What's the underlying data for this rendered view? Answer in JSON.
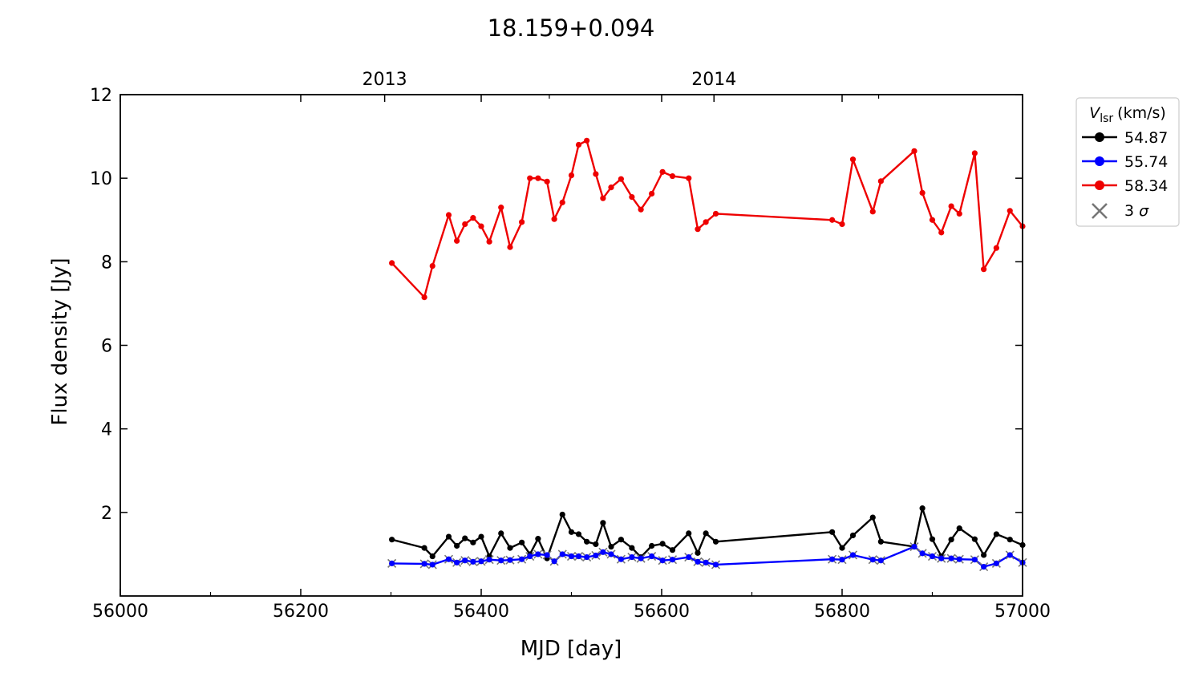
{
  "chart_data": {
    "type": "line",
    "title": "18.159+0.094",
    "xlabel": "MJD [day]",
    "ylabel": "Flux density [Jy]",
    "xlim": [
      56000,
      57000
    ],
    "ylim": [
      0,
      12
    ],
    "xticks": [
      56000,
      56200,
      56400,
      56600,
      56800,
      57000
    ],
    "yticks": [
      2,
      4,
      6,
      8,
      10,
      12
    ],
    "top_axis": {
      "ticks": [
        {
          "label": "2013",
          "mjd": 56293
        },
        {
          "label": "2014",
          "mjd": 56658
        }
      ]
    },
    "grid": false,
    "legend": {
      "placement": "outside-right",
      "title_main": "V",
      "title_sub": "lsr",
      "title_unit": "(km/s)",
      "sigma_label_num": "3",
      "sigma_label_sym": "σ",
      "sigma_color": "#777777"
    },
    "series": [
      {
        "name": "54.87",
        "color": "#000000",
        "x": [
          56301,
          56337,
          56346,
          56364,
          56373,
          56382,
          56391,
          56400,
          56409,
          56422,
          56432,
          56445,
          56454,
          56463,
          56473,
          56490,
          56500,
          56508,
          56517,
          56527,
          56535,
          56544,
          56555,
          56567,
          56577,
          56589,
          56601,
          56612,
          56630,
          56640,
          56649,
          56660,
          56789,
          56800,
          56812,
          56834,
          56843,
          56880,
          56889,
          56900,
          56910,
          56921,
          56930,
          56947,
          56957,
          56971,
          56986,
          57000
        ],
        "y": [
          1.35,
          1.15,
          0.95,
          1.42,
          1.2,
          1.38,
          1.28,
          1.42,
          0.95,
          1.5,
          1.15,
          1.28,
          1.0,
          1.37,
          0.9,
          1.95,
          1.53,
          1.48,
          1.3,
          1.24,
          1.75,
          1.18,
          1.35,
          1.15,
          0.93,
          1.2,
          1.25,
          1.1,
          1.5,
          1.03,
          1.5,
          1.3,
          1.53,
          1.15,
          1.45,
          1.88,
          1.3,
          1.18,
          2.1,
          1.36,
          0.95,
          1.35,
          1.62,
          1.36,
          0.98,
          1.48,
          1.35,
          1.22
        ]
      },
      {
        "name": "55.74",
        "color": "#0000ff",
        "x": [
          56301,
          56337,
          56346,
          56364,
          56373,
          56382,
          56391,
          56400,
          56409,
          56422,
          56432,
          56445,
          56454,
          56463,
          56473,
          56481,
          56490,
          56500,
          56508,
          56517,
          56527,
          56535,
          56544,
          56555,
          56567,
          56577,
          56589,
          56601,
          56612,
          56630,
          56640,
          56649,
          56660,
          56789,
          56800,
          56812,
          56834,
          56843,
          56880,
          56889,
          56900,
          56910,
          56921,
          56930,
          56947,
          56957,
          56971,
          56986,
          57000
        ],
        "y": [
          0.78,
          0.77,
          0.75,
          0.88,
          0.8,
          0.85,
          0.82,
          0.83,
          0.87,
          0.85,
          0.86,
          0.88,
          0.95,
          1.0,
          0.98,
          0.83,
          1.0,
          0.95,
          0.95,
          0.93,
          0.97,
          1.05,
          1.0,
          0.88,
          0.93,
          0.9,
          0.95,
          0.85,
          0.87,
          0.93,
          0.82,
          0.8,
          0.75,
          0.88,
          0.87,
          0.98,
          0.87,
          0.85,
          1.18,
          1.02,
          0.95,
          0.9,
          0.9,
          0.88,
          0.87,
          0.7,
          0.78,
          0.98,
          0.8
        ]
      },
      {
        "name": "58.34",
        "color": "#ee0000",
        "x": [
          56301,
          56337,
          56346,
          56364,
          56373,
          56382,
          56391,
          56400,
          56409,
          56422,
          56432,
          56445,
          56454,
          56463,
          56473,
          56481,
          56490,
          56500,
          56508,
          56517,
          56527,
          56535,
          56544,
          56555,
          56567,
          56577,
          56589,
          56601,
          56612,
          56630,
          56640,
          56649,
          56660,
          56789,
          56800,
          56812,
          56834,
          56843,
          56880,
          56889,
          56900,
          56910,
          56921,
          56930,
          56947,
          56957,
          56971,
          56986,
          57000
        ],
        "y": [
          7.97,
          7.15,
          7.9,
          9.12,
          8.5,
          8.9,
          9.05,
          8.85,
          8.48,
          9.3,
          8.35,
          8.95,
          10.0,
          10.0,
          9.92,
          9.02,
          9.42,
          10.07,
          10.8,
          10.9,
          10.1,
          9.52,
          9.78,
          9.98,
          9.55,
          9.25,
          9.63,
          10.15,
          10.05,
          10.0,
          8.78,
          8.95,
          9.15,
          9.0,
          8.9,
          10.45,
          9.2,
          9.93,
          10.65,
          9.65,
          9.0,
          8.7,
          9.33,
          9.15,
          10.6,
          7.82,
          8.33,
          9.22,
          8.85
        ]
      }
    ]
  }
}
